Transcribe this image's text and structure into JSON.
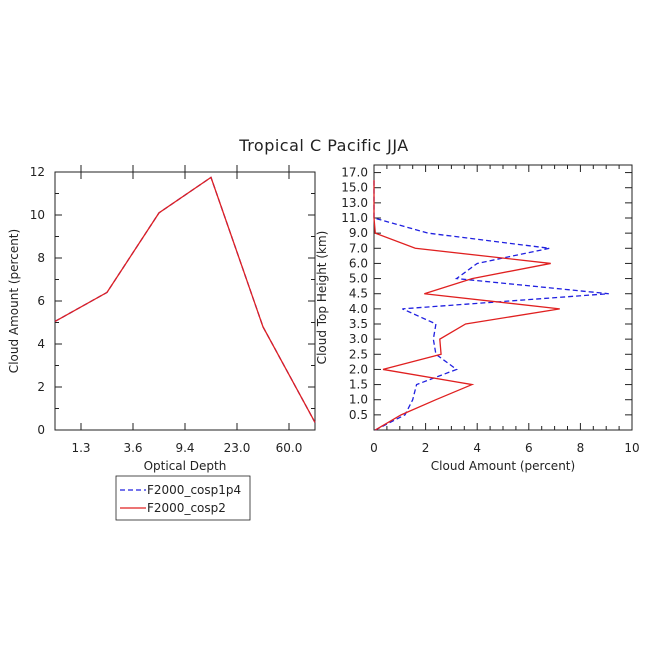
{
  "title": "Tropical C Pacific JJA",
  "colors": {
    "series_1": "#2020e0",
    "series_2": "#e02020",
    "axis": "#222222"
  },
  "legend": {
    "placement": "below-left",
    "entries": [
      "F2000_cosp1p4",
      "F2000_cosp2"
    ]
  },
  "chart_data": [
    {
      "type": "line",
      "xlabel": "Optical Depth",
      "ylabel": "Cloud Amount (percent)",
      "x_ticks": [
        "1.3",
        "3.6",
        "9.4",
        "23.0",
        "60.0"
      ],
      "x_bins": 6,
      "ylim": [
        0,
        12
      ],
      "y_ticks": [
        "0",
        "2",
        "4",
        "6",
        "8",
        "10",
        "12"
      ],
      "series": [
        {
          "name": "F2000_cosp1p4",
          "style": "dashed",
          "x": [
            0,
            1,
            2,
            3,
            4,
            5
          ],
          "values": [
            5.05,
            6.4,
            10.1,
            11.75,
            4.8,
            0.35
          ]
        },
        {
          "name": "F2000_cosp2",
          "style": "solid",
          "x": [
            0,
            1,
            2,
            3,
            4,
            5
          ],
          "values": [
            5.05,
            6.4,
            10.1,
            11.75,
            4.8,
            0.35
          ]
        }
      ]
    },
    {
      "type": "line",
      "xlabel": "Cloud Amount (percent)",
      "ylabel": "Cloud Top Height (km)",
      "xlim": [
        0,
        10
      ],
      "x_ticks": [
        "0",
        "2",
        "4",
        "6",
        "8",
        "10"
      ],
      "y_ticks": [
        "0.5",
        "1.0",
        "1.5",
        "2.0",
        "2.5",
        "3.0",
        "3.5",
        "4.0",
        "4.5",
        "5.0",
        "6.0",
        "7.0",
        "9.0",
        "11.0",
        "13.0",
        "15.0",
        "17.0"
      ],
      "series": [
        {
          "name": "F2000_cosp1p4",
          "style": "dashed",
          "y": [
            0,
            0.5,
            1.0,
            1.5,
            2.0,
            2.5,
            3.0,
            3.5,
            4.0,
            4.5,
            5.0,
            6.0,
            7.0,
            9.0,
            11.0,
            13.0,
            15.0,
            16.0
          ],
          "values": [
            0.05,
            1.2,
            1.5,
            1.65,
            3.2,
            2.4,
            2.3,
            2.4,
            1.1,
            9.1,
            3.2,
            4.0,
            6.8,
            2.1,
            0.0,
            0.0,
            0.0,
            0.0
          ]
        },
        {
          "name": "F2000_cosp2",
          "style": "solid",
          "y": [
            0,
            0.5,
            1.0,
            1.5,
            2.0,
            2.5,
            3.0,
            3.5,
            4.0,
            4.5,
            5.0,
            6.0,
            7.0,
            9.0,
            11.0,
            13.0,
            15.0,
            16.0
          ],
          "values": [
            0.05,
            1.05,
            2.4,
            3.8,
            0.35,
            2.6,
            2.55,
            3.55,
            7.2,
            1.95,
            3.8,
            6.85,
            1.6,
            0.05,
            0.0,
            0.0,
            0.0,
            0.0
          ]
        }
      ]
    }
  ]
}
